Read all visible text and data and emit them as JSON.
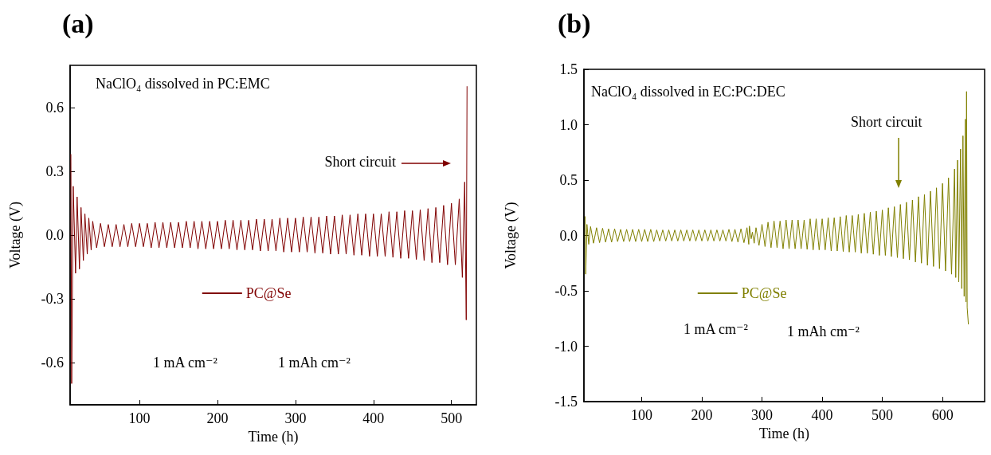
{
  "chart_data": [
    {
      "type": "line",
      "title": "(a)",
      "xlabel": "Time (h)",
      "ylabel": "Voltage (V)",
      "annotations": [
        "NaClO₄ dissolved in PC:EMC",
        "Short circuit",
        "1 mA cm⁻²",
        "1 mAh cm⁻²"
      ],
      "xlim": [
        11,
        532
      ],
      "ylim": [
        -0.8,
        0.8
      ],
      "xticks": [
        100,
        200,
        300,
        400,
        500
      ],
      "yticks": [
        {
          "value": -0.6,
          "label": "-0.6"
        },
        {
          "value": -0.3,
          "label": "-0.3"
        },
        {
          "value": 0,
          "label": "0.0"
        },
        {
          "value": 0.3,
          "label": "0.3"
        },
        {
          "value": 0.6,
          "label": "0.6"
        }
      ],
      "grid": false,
      "legend": "left",
      "marker": "none",
      "line_style": "solid",
      "series": [
        {
          "name": "PC@Se",
          "color": "#800000",
          "x": [
            12,
            13,
            15,
            18,
            20,
            23,
            25,
            28,
            30,
            33,
            35,
            38,
            40,
            45,
            50,
            55,
            60,
            65,
            70,
            75,
            80,
            85,
            90,
            95,
            100,
            105,
            110,
            115,
            120,
            125,
            130,
            135,
            140,
            145,
            150,
            155,
            160,
            165,
            170,
            175,
            180,
            185,
            190,
            195,
            200,
            205,
            210,
            215,
            220,
            225,
            230,
            235,
            240,
            245,
            250,
            255,
            260,
            265,
            270,
            275,
            280,
            285,
            290,
            295,
            300,
            305,
            310,
            315,
            320,
            325,
            330,
            335,
            340,
            345,
            350,
            355,
            360,
            365,
            370,
            375,
            380,
            385,
            390,
            395,
            400,
            405,
            410,
            415,
            420,
            425,
            430,
            435,
            440,
            445,
            450,
            455,
            460,
            465,
            470,
            475,
            480,
            485,
            490,
            495,
            500,
            505,
            510,
            514,
            517,
            519,
            520
          ],
          "values": [
            0.38,
            -0.7,
            0.23,
            -0.18,
            0.18,
            -0.16,
            0.13,
            -0.12,
            0.1,
            -0.09,
            0.08,
            -0.07,
            0.065,
            -0.06,
            0.055,
            -0.055,
            0.05,
            -0.055,
            0.05,
            -0.055,
            0.05,
            -0.055,
            0.055,
            -0.055,
            0.055,
            -0.055,
            0.055,
            -0.06,
            0.06,
            -0.06,
            0.06,
            -0.06,
            0.06,
            -0.06,
            0.06,
            -0.06,
            0.065,
            -0.06,
            0.065,
            -0.065,
            0.065,
            -0.065,
            0.065,
            -0.065,
            0.065,
            -0.065,
            0.07,
            -0.065,
            0.07,
            -0.07,
            0.07,
            -0.07,
            0.07,
            -0.07,
            0.075,
            -0.075,
            0.075,
            -0.075,
            0.075,
            -0.075,
            0.08,
            -0.08,
            0.08,
            -0.08,
            0.08,
            -0.08,
            0.085,
            -0.08,
            0.085,
            -0.085,
            0.085,
            -0.085,
            0.09,
            -0.09,
            0.09,
            -0.09,
            0.095,
            -0.09,
            0.095,
            -0.095,
            0.1,
            -0.095,
            0.1,
            -0.1,
            0.1,
            -0.1,
            0.1,
            -0.1,
            0.11,
            -0.105,
            0.11,
            -0.11,
            0.115,
            -0.11,
            0.115,
            -0.115,
            0.12,
            -0.12,
            0.125,
            -0.13,
            0.13,
            -0.13,
            0.14,
            -0.14,
            0.15,
            -0.14,
            0.17,
            -0.2,
            0.25,
            -0.4,
            0.7
          ]
        }
      ]
    },
    {
      "type": "line",
      "title": "(b)",
      "xlabel": "Time (h)",
      "ylabel": "Voltage (V)",
      "annotations": [
        "NaClO₄ dissolved in EC:PC:DEC",
        "Short circuit",
        "1 mA cm⁻²",
        "1 mAh cm⁻²"
      ],
      "xlim": [
        4,
        670
      ],
      "ylim": [
        -1.5,
        1.5
      ],
      "xticks": [
        100,
        200,
        300,
        400,
        500,
        600
      ],
      "yticks": [
        -1.5,
        {
          "value": -1,
          "label": "-1.0"
        },
        -0.5,
        {
          "value": 0,
          "label": "0.0"
        },
        0.5,
        {
          "value": 1,
          "label": "1.0"
        },
        1.5
      ],
      "grid": false,
      "legend": "left",
      "marker": "none",
      "line_style": "solid",
      "series": [
        {
          "name": "PC@Se",
          "color": "#808000",
          "x": [
            6,
            7,
            9,
            12,
            15,
            20,
            25,
            30,
            35,
            40,
            45,
            50,
            55,
            60,
            65,
            70,
            75,
            80,
            85,
            90,
            95,
            100,
            105,
            110,
            115,
            120,
            125,
            130,
            135,
            140,
            145,
            150,
            155,
            160,
            165,
            170,
            175,
            180,
            185,
            190,
            195,
            200,
            205,
            210,
            215,
            220,
            225,
            230,
            235,
            240,
            245,
            250,
            255,
            260,
            265,
            270,
            275,
            278,
            279,
            282,
            284,
            287,
            290,
            295,
            300,
            305,
            310,
            315,
            320,
            325,
            330,
            335,
            340,
            345,
            350,
            355,
            360,
            365,
            370,
            375,
            380,
            385,
            390,
            395,
            400,
            405,
            410,
            415,
            420,
            425,
            430,
            435,
            440,
            445,
            450,
            455,
            460,
            465,
            470,
            475,
            480,
            485,
            490,
            495,
            500,
            505,
            510,
            515,
            520,
            525,
            530,
            535,
            540,
            545,
            550,
            555,
            560,
            565,
            570,
            575,
            580,
            585,
            590,
            595,
            600,
            605,
            610,
            615,
            620,
            622,
            625,
            627,
            630,
            632,
            634,
            636,
            638,
            639,
            640,
            641,
            643
          ],
          "values": [
            0.17,
            -0.35,
            0.1,
            -0.08,
            0.08,
            -0.07,
            0.07,
            -0.065,
            0.065,
            -0.06,
            0.06,
            -0.06,
            0.06,
            -0.055,
            0.055,
            -0.055,
            0.055,
            -0.055,
            0.055,
            -0.055,
            0.055,
            -0.055,
            0.055,
            -0.055,
            0.055,
            -0.055,
            0.05,
            -0.05,
            0.05,
            -0.05,
            0.05,
            -0.05,
            0.05,
            -0.05,
            0.05,
            -0.05,
            0.05,
            -0.05,
            0.05,
            -0.05,
            0.05,
            -0.05,
            0.05,
            -0.05,
            0.05,
            -0.05,
            0.05,
            -0.05,
            0.05,
            -0.05,
            0.055,
            -0.055,
            0.055,
            -0.06,
            0.06,
            -0.065,
            0.07,
            -0.08,
            0.085,
            -0.03,
            0.03,
            -0.07,
            0.07,
            -0.09,
            0.1,
            -0.1,
            0.12,
            -0.11,
            0.13,
            -0.11,
            0.13,
            -0.12,
            0.14,
            -0.12,
            0.14,
            -0.12,
            0.14,
            -0.12,
            0.14,
            -0.125,
            0.15,
            -0.13,
            0.15,
            -0.13,
            0.15,
            -0.13,
            0.16,
            -0.14,
            0.16,
            -0.14,
            0.17,
            -0.145,
            0.18,
            -0.15,
            0.18,
            -0.15,
            0.19,
            -0.16,
            0.2,
            -0.16,
            0.21,
            -0.17,
            0.22,
            -0.18,
            0.23,
            -0.18,
            0.25,
            -0.19,
            0.26,
            -0.2,
            0.28,
            -0.21,
            0.3,
            -0.22,
            0.32,
            -0.24,
            0.35,
            -0.25,
            0.37,
            -0.27,
            0.4,
            -0.28,
            0.43,
            -0.3,
            0.47,
            -0.32,
            0.52,
            -0.35,
            0.6,
            -0.38,
            0.68,
            -0.42,
            0.78,
            -0.48,
            0.9,
            -0.55,
            1.05,
            -0.6,
            1.3,
            -0.65,
            -0.8
          ]
        }
      ]
    }
  ]
}
